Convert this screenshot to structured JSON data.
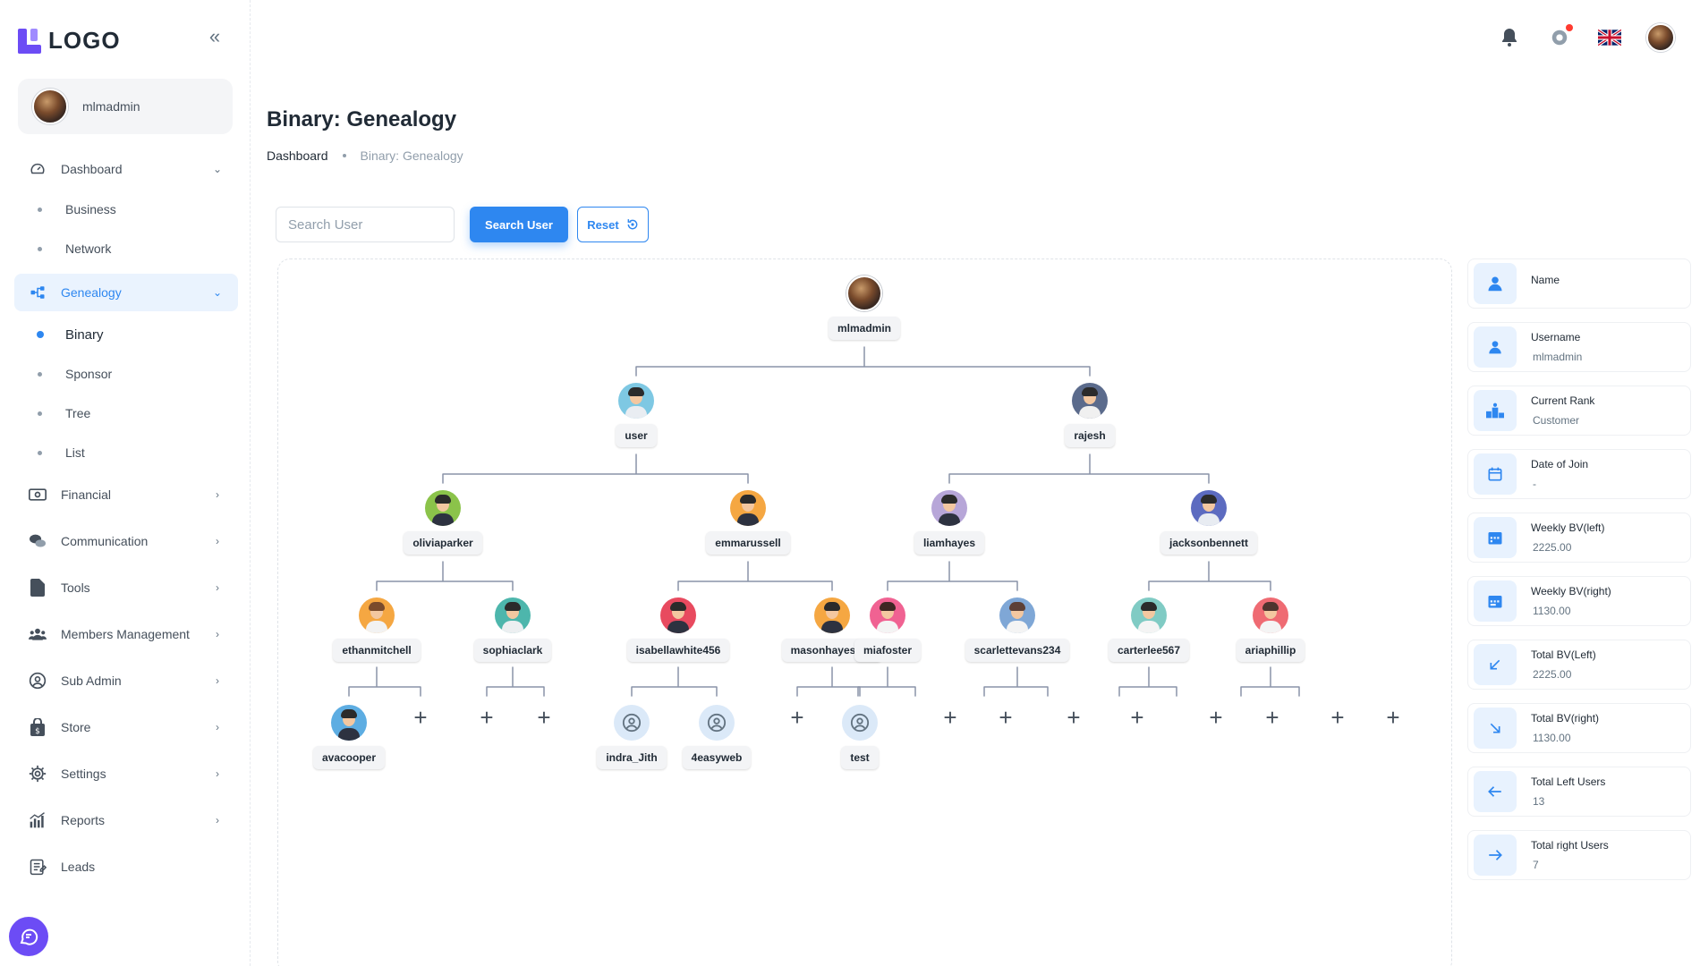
{
  "logo": {
    "text": "LOGO"
  },
  "user": {
    "name": "mlmadmin"
  },
  "sidebar": {
    "items": [
      {
        "key": "dashboard",
        "label": "Dashboard",
        "icon": "speedometer-icon",
        "chevron": "down"
      },
      {
        "key": "genealogy",
        "label": "Genealogy",
        "icon": "hierarchy-icon",
        "chevron": "down",
        "active": true
      },
      {
        "key": "financial",
        "label": "Financial",
        "icon": "money-icon",
        "chevron": "right"
      },
      {
        "key": "communication",
        "label": "Communication",
        "icon": "chat-bubbles-icon",
        "chevron": "right"
      },
      {
        "key": "tools",
        "label": "Tools",
        "icon": "file-icon",
        "chevron": "right"
      },
      {
        "key": "members",
        "label": "Members Management",
        "icon": "users-icon",
        "chevron": "right"
      },
      {
        "key": "subadmin",
        "label": "Sub Admin",
        "icon": "user-circle-icon",
        "chevron": "right"
      },
      {
        "key": "store",
        "label": "Store",
        "icon": "shopping-bag-icon",
        "chevron": "right"
      },
      {
        "key": "settings",
        "label": "Settings",
        "icon": "gear-icon",
        "chevron": "right"
      },
      {
        "key": "reports",
        "label": "Reports",
        "icon": "bar-chart-icon",
        "chevron": "right"
      },
      {
        "key": "leads",
        "label": "Leads",
        "icon": "clipboard-icon",
        "chevron": "none"
      }
    ],
    "dashboard_sub": [
      "Business",
      "Network"
    ],
    "genealogy_sub": [
      "Binary",
      "Sponsor",
      "Tree",
      "List"
    ]
  },
  "topbar": {
    "icons": [
      "bell-icon",
      "settings-icon",
      "uk-flag-icon",
      "avatar"
    ]
  },
  "page": {
    "title": "Binary: Genealogy",
    "breadcrumb": {
      "home": "Dashboard",
      "current": "Binary: Genealogy"
    }
  },
  "search": {
    "placeholder": "Search User",
    "button": "Search User",
    "reset": "Reset"
  },
  "tree": {
    "nodes": [
      "mlmadmin",
      "user",
      "rajesh",
      "oliviaparker",
      "emmarussell",
      "liamhayes",
      "jacksonbennett",
      "ethanmitchell",
      "sophiaclark",
      "isabellawhite456",
      "masonhayes789",
      "miafoster",
      "scarlettevans234",
      "carterlee567",
      "ariaphillip",
      "avacooper",
      "indra_Jith",
      "4easyweb",
      "test"
    ]
  },
  "info": [
    {
      "label": "Name",
      "value": "",
      "icon": "user-icon"
    },
    {
      "label": "Username",
      "value": "mlmadmin",
      "icon": "user-icon"
    },
    {
      "label": "Current Rank",
      "value": "Customer",
      "icon": "podium-icon"
    },
    {
      "label": "Date of Join",
      "value": "-",
      "icon": "calendar-icon"
    },
    {
      "label": "Weekly BV(left)",
      "value": "2225.00",
      "icon": "calendar-week-icon"
    },
    {
      "label": "Weekly BV(right)",
      "value": "1130.00",
      "icon": "calendar-week-icon"
    },
    {
      "label": "Total BV(Left)",
      "value": "2225.00",
      "icon": "arrow-down-left-icon"
    },
    {
      "label": "Total BV(right)",
      "value": "1130.00",
      "icon": "arrow-down-right-icon"
    },
    {
      "label": "Total Left Users",
      "value": "13",
      "icon": "arrow-left-icon"
    },
    {
      "label": "Total right Users",
      "value": "7",
      "icon": "arrow-right-icon"
    }
  ]
}
